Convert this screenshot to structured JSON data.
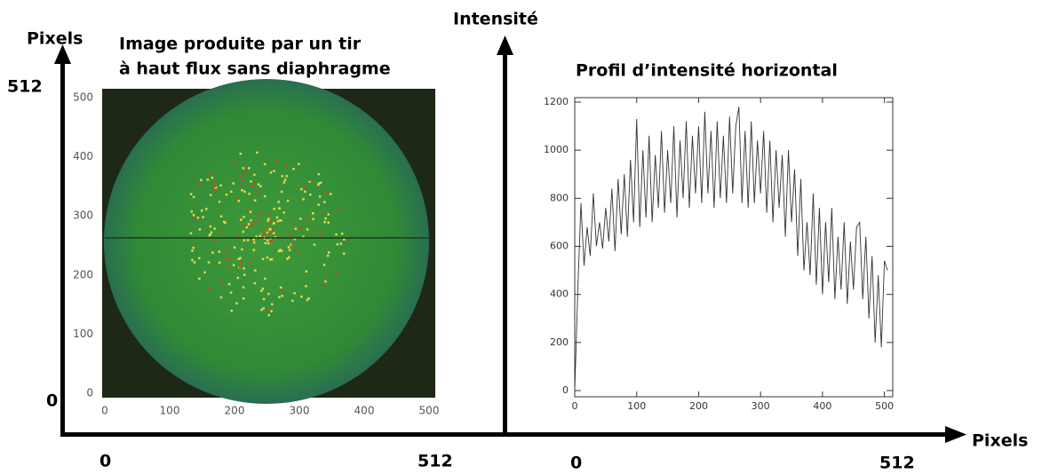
{
  "labels": {
    "left_y_axis": "Pixels",
    "left_y_max": "512",
    "left_y_min": "0",
    "bottom_left_min": "0",
    "bottom_left_max": "512",
    "middle_axis": "Intensité",
    "bottom_right_min": "0",
    "bottom_right_max": "512",
    "bottom_axis": "Pixels"
  },
  "chart_data": [
    {
      "type": "image",
      "title": [
        "Image produite par un tir",
        "à haut flux sans diaphragme"
      ],
      "xlim": [
        0,
        512
      ],
      "ylim": [
        0,
        512
      ],
      "xticks": [
        0,
        100,
        200,
        300,
        400,
        500
      ],
      "yticks": [
        0,
        100,
        200,
        300,
        400,
        500
      ]
    },
    {
      "type": "line",
      "title": "Profil d’intensité horizontal",
      "color": "#333333",
      "xlim": [
        0,
        512
      ],
      "ylim": [
        0,
        1200
      ],
      "xticks": [
        0,
        100,
        200,
        300,
        400,
        500
      ],
      "yticks": [
        0,
        200,
        400,
        600,
        800,
        1000,
        1200
      ],
      "x": [
        0,
        5,
        10,
        15,
        20,
        25,
        30,
        35,
        40,
        45,
        50,
        55,
        60,
        65,
        70,
        75,
        80,
        85,
        90,
        95,
        100,
        105,
        110,
        115,
        120,
        125,
        130,
        135,
        140,
        145,
        150,
        155,
        160,
        165,
        170,
        175,
        180,
        185,
        190,
        195,
        200,
        205,
        210,
        215,
        220,
        225,
        230,
        235,
        240,
        245,
        250,
        255,
        260,
        265,
        270,
        275,
        280,
        285,
        290,
        295,
        300,
        305,
        310,
        315,
        320,
        325,
        330,
        335,
        340,
        345,
        350,
        355,
        360,
        365,
        370,
        375,
        380,
        385,
        390,
        395,
        400,
        405,
        410,
        415,
        420,
        425,
        430,
        435,
        440,
        445,
        450,
        455,
        460,
        465,
        470,
        475,
        480,
        485,
        490,
        495,
        500,
        505
      ],
      "values": [
        0,
        420,
        780,
        520,
        680,
        560,
        820,
        600,
        700,
        590,
        760,
        620,
        840,
        580,
        880,
        650,
        900,
        640,
        960,
        700,
        1130,
        680,
        1000,
        720,
        1060,
        700,
        980,
        760,
        1080,
        740,
        1000,
        780,
        1100,
        720,
        1040,
        800,
        1120,
        760,
        1060,
        820,
        1100,
        780,
        1160,
        820,
        1080,
        760,
        1120,
        800,
        1060,
        780,
        1140,
        820,
        1100,
        1180,
        780,
        1080,
        760,
        1120,
        780,
        1040,
        820,
        1080,
        740,
        1040,
        700,
        1000,
        760,
        980,
        640,
        1000,
        700,
        920,
        560,
        880,
        500,
        700,
        480,
        820,
        440,
        760,
        400,
        700,
        450,
        760,
        380,
        640,
        420,
        700,
        360,
        620,
        420,
        680,
        700,
        380,
        640,
        300,
        560,
        200,
        480,
        180,
        540,
        500
      ]
    }
  ]
}
